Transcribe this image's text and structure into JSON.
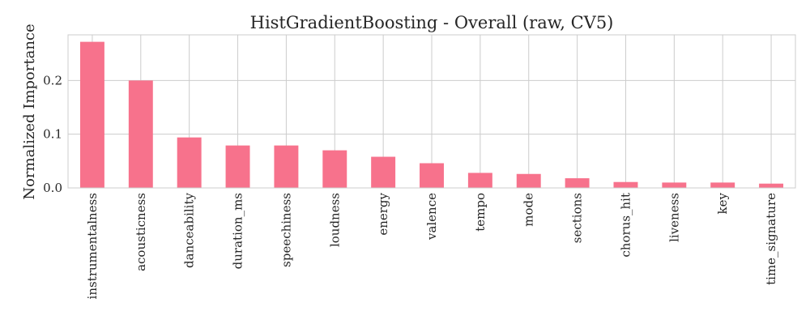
{
  "chart_data": {
    "type": "bar",
    "title": "HistGradientBoosting - Overall (raw, CV5)",
    "xlabel": "",
    "ylabel": "Normalized Importance",
    "categories": [
      "instrumentalness",
      "acousticness",
      "danceability",
      "duration_ms",
      "speechiness",
      "loudness",
      "energy",
      "valence",
      "tempo",
      "mode",
      "sections",
      "chorus_hit",
      "liveness",
      "key",
      "time_signature"
    ],
    "values": [
      0.272,
      0.2,
      0.094,
      0.079,
      0.079,
      0.07,
      0.058,
      0.046,
      0.028,
      0.026,
      0.018,
      0.011,
      0.01,
      0.01,
      0.008
    ],
    "ylim": [
      0,
      0.285
    ],
    "yticks": [
      0.0,
      0.1,
      0.2
    ],
    "ytick_labels": [
      "0.0",
      "0.1",
      "0.2"
    ],
    "grid": true,
    "bar_color": "#f7728c"
  }
}
